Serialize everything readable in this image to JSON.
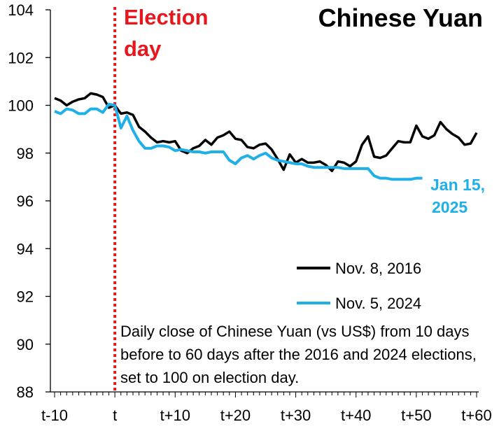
{
  "chart_data": {
    "type": "line",
    "title": "Chinese Yuan",
    "ylim": [
      88,
      104
    ],
    "y_ticks": [
      88,
      90,
      92,
      94,
      96,
      98,
      100,
      102,
      104
    ],
    "x_range": [
      -10,
      60
    ],
    "x_ticks": [
      {
        "value": -10,
        "label": "t-10"
      },
      {
        "value": 0,
        "label": "t"
      },
      {
        "value": 10,
        "label": "t+10"
      },
      {
        "value": 20,
        "label": "t+20"
      },
      {
        "value": 30,
        "label": "t+30"
      },
      {
        "value": 40,
        "label": "t+40"
      },
      {
        "value": 50,
        "label": "t+50"
      },
      {
        "value": 60,
        "label": "t+60"
      }
    ],
    "event_line": {
      "x": 0,
      "label_line1": "Election",
      "label_line2": "day",
      "color": "#e8171d"
    },
    "legend_position": "lower-right",
    "series": [
      {
        "name": "Nov. 8, 2016",
        "color": "#000000",
        "points": [
          [
            -10,
            100.3
          ],
          [
            -9,
            100.2
          ],
          [
            -8,
            100.0
          ],
          [
            -7,
            100.15
          ],
          [
            -6,
            100.25
          ],
          [
            -5,
            100.3
          ],
          [
            -4,
            100.5
          ],
          [
            -3,
            100.45
          ],
          [
            -2,
            100.35
          ],
          [
            -1,
            99.9
          ],
          [
            0,
            100.0
          ],
          [
            1,
            99.65
          ],
          [
            2,
            99.7
          ],
          [
            3,
            99.6
          ],
          [
            4,
            99.1
          ],
          [
            5,
            98.9
          ],
          [
            6,
            98.65
          ],
          [
            7,
            98.45
          ],
          [
            8,
            98.5
          ],
          [
            9,
            98.45
          ],
          [
            10,
            98.5
          ],
          [
            11,
            98.1
          ],
          [
            12,
            98.0
          ],
          [
            13,
            98.2
          ],
          [
            14,
            98.3
          ],
          [
            15,
            98.55
          ],
          [
            16,
            98.35
          ],
          [
            17,
            98.65
          ],
          [
            18,
            98.75
          ],
          [
            19,
            98.9
          ],
          [
            20,
            98.6
          ],
          [
            21,
            98.55
          ],
          [
            22,
            98.25
          ],
          [
            23,
            98.2
          ],
          [
            24,
            98.35
          ],
          [
            25,
            98.4
          ],
          [
            26,
            98.15
          ],
          [
            27,
            97.75
          ],
          [
            28,
            97.3
          ],
          [
            29,
            97.95
          ],
          [
            30,
            97.6
          ],
          [
            31,
            97.75
          ],
          [
            32,
            97.6
          ],
          [
            33,
            97.6
          ],
          [
            34,
            97.65
          ],
          [
            35,
            97.5
          ],
          [
            36,
            97.25
          ],
          [
            37,
            97.65
          ],
          [
            38,
            97.6
          ],
          [
            39,
            97.45
          ],
          [
            40,
            97.65
          ],
          [
            41,
            98.35
          ],
          [
            42,
            98.7
          ],
          [
            43,
            97.85
          ],
          [
            44,
            97.8
          ],
          [
            45,
            97.9
          ],
          [
            46,
            98.2
          ],
          [
            47,
            98.5
          ],
          [
            48,
            98.45
          ],
          [
            49,
            98.45
          ],
          [
            50,
            99.15
          ],
          [
            51,
            98.7
          ],
          [
            52,
            98.6
          ],
          [
            53,
            98.75
          ],
          [
            54,
            99.3
          ],
          [
            55,
            99.0
          ],
          [
            56,
            98.8
          ],
          [
            57,
            98.65
          ],
          [
            58,
            98.35
          ],
          [
            59,
            98.4
          ],
          [
            60,
            98.85
          ]
        ]
      },
      {
        "name": "Nov. 5, 2024",
        "color": "#1fb0e8",
        "end_label_line1": "Jan 15,",
        "end_label_line2": "2025",
        "points": [
          [
            -10,
            99.75
          ],
          [
            -9,
            99.65
          ],
          [
            -8,
            99.85
          ],
          [
            -7,
            99.8
          ],
          [
            -6,
            99.65
          ],
          [
            -5,
            99.65
          ],
          [
            -4,
            99.85
          ],
          [
            -3,
            99.85
          ],
          [
            -2,
            99.7
          ],
          [
            -1,
            100.05
          ],
          [
            0,
            100.0
          ],
          [
            1,
            99.05
          ],
          [
            2,
            99.55
          ],
          [
            3,
            98.95
          ],
          [
            4,
            98.5
          ],
          [
            5,
            98.2
          ],
          [
            6,
            98.2
          ],
          [
            7,
            98.3
          ],
          [
            8,
            98.3
          ],
          [
            9,
            98.25
          ],
          [
            10,
            98.1
          ],
          [
            11,
            98.15
          ],
          [
            12,
            98.1
          ],
          [
            13,
            98.05
          ],
          [
            14,
            98.05
          ],
          [
            15,
            98.0
          ],
          [
            16,
            98.05
          ],
          [
            17,
            98.05
          ],
          [
            18,
            98.05
          ],
          [
            19,
            97.7
          ],
          [
            20,
            97.55
          ],
          [
            21,
            97.8
          ],
          [
            22,
            97.9
          ],
          [
            23,
            97.75
          ],
          [
            24,
            97.9
          ],
          [
            25,
            98.0
          ],
          [
            26,
            97.8
          ],
          [
            27,
            97.7
          ],
          [
            28,
            97.65
          ],
          [
            29,
            97.6
          ],
          [
            30,
            97.55
          ],
          [
            31,
            97.55
          ],
          [
            32,
            97.45
          ],
          [
            33,
            97.4
          ],
          [
            34,
            97.4
          ],
          [
            35,
            97.4
          ],
          [
            36,
            97.4
          ],
          [
            37,
            97.4
          ],
          [
            38,
            97.35
          ],
          [
            39,
            97.35
          ],
          [
            40,
            97.35
          ],
          [
            41,
            97.35
          ],
          [
            42,
            97.35
          ],
          [
            43,
            97.05
          ],
          [
            44,
            96.95
          ],
          [
            45,
            96.95
          ],
          [
            46,
            96.9
          ],
          [
            47,
            96.9
          ],
          [
            48,
            96.9
          ],
          [
            49,
            96.9
          ],
          [
            50,
            96.95
          ],
          [
            51,
            96.95
          ]
        ]
      }
    ],
    "note": "Daily close of Chinese Yuan (vs US$) from 10 days before to 60 days after the 2016 and 2024 elections, set to 100 on election day."
  }
}
